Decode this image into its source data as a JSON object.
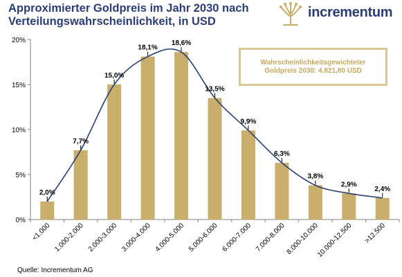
{
  "title_line1": "Approximierter Goldpreis im Jahr 2030 nach",
  "title_line2": "Verteilungswahrscheinlichkeit, in USD",
  "logo": {
    "text": "incrementum",
    "icon": "tree-logo-icon"
  },
  "callout": {
    "line1": "Wahrscheinlichkeitsgewichteter",
    "line2": "Goldpreis 2030: 4.821,80 USD"
  },
  "source": "Quelle: Incrementum AG",
  "colors": {
    "bar": "#c9ae6c",
    "curve": "#2b3e73",
    "title": "#2b3e73",
    "callout_border": "#d9c88f",
    "callout_text": "#c5a85f"
  },
  "chart_data": {
    "type": "bar",
    "categories": [
      "<1.000",
      "1.000-2.000",
      "2.000-3.000",
      "3.000-4.000",
      "4.000-5.000",
      "5.000-6.000",
      "6.000-7.000",
      "7.000-8.000",
      "8.000-10.000",
      "10.000-12.500",
      ">12.500"
    ],
    "values": [
      2.0,
      7.7,
      15.0,
      18.1,
      18.6,
      13.5,
      9.9,
      6.3,
      3.8,
      2.9,
      2.4
    ],
    "value_labels": [
      "2,0%",
      "7,7%",
      "15,0%",
      "18,1%",
      "18,6%",
      "13,5%",
      "9,9%",
      "6,3%",
      "3,8%",
      "2,9%",
      "2,4%"
    ],
    "yticks": [
      0,
      5,
      10,
      15,
      20
    ],
    "ytick_labels": [
      "0%",
      "5%",
      "10%",
      "15%",
      "20%"
    ],
    "ylim": [
      0,
      20
    ],
    "overlay": "smoothed distribution curve",
    "grid": false,
    "title": "Approximierter Goldpreis im Jahr 2030 nach Verteilungswahrscheinlichkeit, in USD"
  }
}
